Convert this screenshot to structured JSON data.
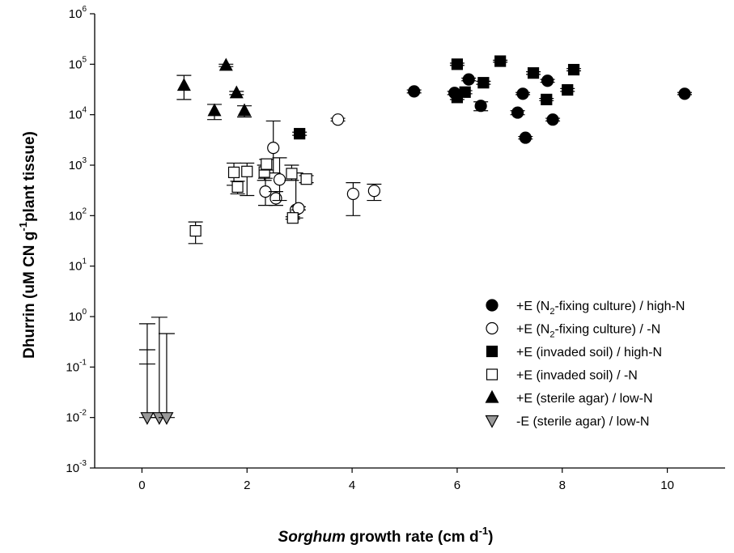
{
  "chart_data": {
    "type": "scatter",
    "title": "",
    "xlabel": {
      "italic": "Sorghum",
      "text": " growth rate (cm d",
      "sup": "-1",
      "end": ")"
    },
    "ylabel": {
      "text": "Dhurrin (uM CN g",
      "sup": "-1",
      "end": "plant tissue)"
    },
    "x_scale": "linear",
    "y_scale": "log",
    "xlim": [
      -0.9,
      11.1
    ],
    "ylim": [
      0.001,
      1000000
    ],
    "x_ticks": [
      {
        "value": 0,
        "label": "0"
      },
      {
        "value": 2,
        "label": "2"
      },
      {
        "value": 4,
        "label": "4"
      },
      {
        "value": 6,
        "label": "6"
      },
      {
        "value": 8,
        "label": "8"
      },
      {
        "value": 10,
        "label": "10"
      }
    ],
    "y_ticks": [
      {
        "value": 0.001,
        "base": "10",
        "exp": "-3"
      },
      {
        "value": 0.01,
        "base": "10",
        "exp": "-2"
      },
      {
        "value": 0.1,
        "base": "10",
        "exp": "-1"
      },
      {
        "value": 1,
        "base": "10",
        "exp": "0"
      },
      {
        "value": 10,
        "base": "10",
        "exp": "1"
      },
      {
        "value": 100,
        "base": "10",
        "exp": "2"
      },
      {
        "value": 1000,
        "base": "10",
        "exp": "3"
      },
      {
        "value": 10000,
        "base": "10",
        "exp": "4"
      },
      {
        "value": 100000,
        "base": "10",
        "exp": "5"
      },
      {
        "value": 1000000,
        "base": "10",
        "exp": "6"
      }
    ],
    "grid": false,
    "legend_position": "bottom-right",
    "series": [
      {
        "name": "+E (N2-fixing culture) / high-N",
        "legend": {
          "pre": "+E (N",
          "sub": "2",
          "post": "-fixing culture) / high-N"
        },
        "marker": "circle",
        "fill": "#000000",
        "points": [
          {
            "x": 5.18,
            "y": 29000,
            "lo": 27000,
            "hi": 31000
          },
          {
            "x": 5.95,
            "y": 27000,
            "lo": 25000,
            "hi": 29000
          },
          {
            "x": 6.22,
            "y": 50000,
            "lo": 47000,
            "hi": 53000
          },
          {
            "x": 6.45,
            "y": 15000,
            "lo": 12000,
            "hi": 18000
          },
          {
            "x": 7.15,
            "y": 11000,
            "lo": 10000,
            "hi": 12000
          },
          {
            "x": 7.25,
            "y": 26000,
            "lo": 25000,
            "hi": 27500
          },
          {
            "x": 7.3,
            "y": 3500,
            "lo": 3300,
            "hi": 3700
          },
          {
            "x": 7.72,
            "y": 47000,
            "lo": 44000,
            "hi": 50000
          },
          {
            "x": 7.82,
            "y": 8000,
            "lo": 7500,
            "hi": 8500
          },
          {
            "x": 10.33,
            "y": 26000,
            "lo": 25000,
            "hi": 27500
          }
        ]
      },
      {
        "name": "+E (N2-fixing culture) / -N",
        "legend": {
          "pre": "+E (N",
          "sub": "2",
          "post": "-fixing culture) / -N"
        },
        "marker": "circle",
        "fill": "#ffffff",
        "points": [
          {
            "x": 2.35,
            "y": 300,
            "lo": 160,
            "hi": 550
          },
          {
            "x": 2.5,
            "y": 2200,
            "lo": 700,
            "hi": 7500
          },
          {
            "x": 2.55,
            "y": 220,
            "lo": 160,
            "hi": 300
          },
          {
            "x": 2.62,
            "y": 520,
            "lo": 200,
            "hi": 1400
          },
          {
            "x": 2.93,
            "y": 130,
            "lo": 90,
            "hi": 700
          },
          {
            "x": 2.98,
            "y": 140,
            "lo": 130,
            "hi": 150
          },
          {
            "x": 3.73,
            "y": 8000,
            "lo": 7500,
            "hi": 8500
          },
          {
            "x": 4.02,
            "y": 270,
            "lo": 100,
            "hi": 450
          },
          {
            "x": 4.42,
            "y": 310,
            "lo": 200,
            "hi": 420
          }
        ]
      },
      {
        "name": "+E (invaded soil) / high-N",
        "legend": {
          "pre": "+E (invaded soil) / high-N",
          "sub": "",
          "post": ""
        },
        "marker": "square",
        "fill": "#000000",
        "points": [
          {
            "x": 3.0,
            "y": 4200,
            "lo": 3900,
            "hi": 4500
          },
          {
            "x": 6.0,
            "y": 100000,
            "lo": 95000,
            "hi": 105000
          },
          {
            "x": 6.0,
            "y": 22000,
            "lo": 20000,
            "hi": 24000
          },
          {
            "x": 6.15,
            "y": 28000,
            "lo": 26000,
            "hi": 30000
          },
          {
            "x": 6.5,
            "y": 43000,
            "lo": 40000,
            "hi": 46000
          },
          {
            "x": 6.82,
            "y": 115000,
            "lo": 110000,
            "hi": 120000
          },
          {
            "x": 7.45,
            "y": 67000,
            "lo": 63000,
            "hi": 71000
          },
          {
            "x": 7.7,
            "y": 20000,
            "lo": 19000,
            "hi": 21000
          },
          {
            "x": 8.1,
            "y": 31000,
            "lo": 29000,
            "hi": 33000
          },
          {
            "x": 8.22,
            "y": 78000,
            "lo": 74000,
            "hi": 82000
          }
        ]
      },
      {
        "name": "+E (invaded soil) / -N",
        "legend": {
          "pre": "+E (invaded soil) / -N",
          "sub": "",
          "post": ""
        },
        "marker": "square",
        "fill": "#ffffff",
        "points": [
          {
            "x": 1.02,
            "y": 50,
            "lo": 28,
            "hi": 75
          },
          {
            "x": 1.75,
            "y": 720,
            "lo": 400,
            "hi": 1100
          },
          {
            "x": 1.82,
            "y": 370,
            "lo": 270,
            "hi": 480
          },
          {
            "x": 2.0,
            "y": 750,
            "lo": 250,
            "hi": 1100
          },
          {
            "x": 2.33,
            "y": 730,
            "lo": 500,
            "hi": 1000
          },
          {
            "x": 2.37,
            "y": 1050,
            "lo": 800,
            "hi": 1300
          },
          {
            "x": 2.85,
            "y": 680,
            "lo": 500,
            "hi": 1000
          },
          {
            "x": 2.87,
            "y": 90,
            "lo": 85,
            "hi": 95
          },
          {
            "x": 3.13,
            "y": 530,
            "lo": 450,
            "hi": 620
          }
        ]
      },
      {
        "name": "+E (sterile agar) / low-N",
        "legend": {
          "pre": "+E (sterile agar) / low-N",
          "sub": "",
          "post": ""
        },
        "marker": "triangle-up",
        "fill": "#000000",
        "points": [
          {
            "x": 0.8,
            "y": 38000,
            "lo": 20000,
            "hi": 60000
          },
          {
            "x": 1.38,
            "y": 12000,
            "lo": 8000,
            "hi": 16000
          },
          {
            "x": 1.6,
            "y": 95000,
            "lo": 90000,
            "hi": 100000
          },
          {
            "x": 1.8,
            "y": 27000,
            "lo": 25000,
            "hi": 29000
          },
          {
            "x": 1.95,
            "y": 12000,
            "lo": 9000,
            "hi": 15000
          }
        ]
      },
      {
        "name": "-E (sterile agar) / low-N",
        "legend": {
          "pre": "-E (sterile agar) / low-N",
          "sub": "",
          "post": ""
        },
        "marker": "triangle-down",
        "fill": "#999999",
        "points": [
          {
            "x": 0.1,
            "y": 0.01,
            "lo": 0.01,
            "hi": 0.72,
            "extra": [
              0.115,
              0.22
            ]
          },
          {
            "x": 0.33,
            "y": 0.01,
            "lo": 0.01,
            "hi": 0.97
          },
          {
            "x": 0.47,
            "y": 0.01,
            "lo": 0.01,
            "hi": 0.46
          }
        ]
      }
    ]
  }
}
